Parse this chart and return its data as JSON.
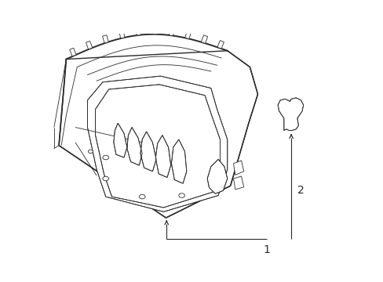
{
  "bg_color": "#ffffff",
  "lc": "#2a2a2a",
  "lw": 1.0,
  "tlw": 0.6,
  "figsize": [
    4.89,
    3.6
  ],
  "dpi": 100,
  "label1": "1",
  "label2": "2"
}
